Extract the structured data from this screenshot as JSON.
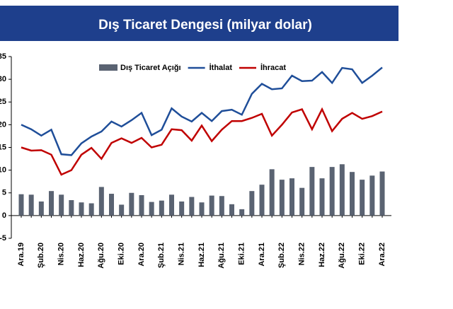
{
  "chart_data": {
    "type": "combo",
    "title": "Dış Ticaret Dengesi (milyar dolar)",
    "categories": [
      "Ara.19",
      null,
      "Şub.20",
      null,
      "Nis.20",
      null,
      "Haz.20",
      null,
      "Ağu.20",
      null,
      "Eki.20",
      null,
      "Ara.20",
      null,
      "Şub.21",
      null,
      "Nis.21",
      null,
      "Haz.21",
      null,
      "Ağu.21",
      null,
      "Eki.21",
      null,
      "Ara.21",
      null,
      "Şub.22",
      null,
      "Nis.22",
      null,
      "Haz.22",
      null,
      "Ağu.22",
      null,
      "Eki.22",
      null,
      "Ara.22"
    ],
    "series": [
      {
        "name": "Dış Ticaret Açığı",
        "type": "bar",
        "color": "#5a6372",
        "values": [
          4.7,
          4.6,
          3.1,
          5.4,
          4.6,
          3.4,
          2.9,
          2.7,
          6.3,
          4.8,
          2.4,
          5.0,
          4.5,
          3.0,
          3.3,
          4.6,
          3.1,
          4.1,
          2.9,
          4.4,
          4.3,
          2.5,
          1.4,
          5.4,
          6.8,
          10.2,
          7.9,
          8.2,
          6.1,
          10.7,
          8.2,
          10.7,
          11.3,
          9.6,
          7.9,
          8.8,
          9.7
        ]
      },
      {
        "name": "İthalat",
        "type": "line",
        "color": "#1f4e99",
        "values": [
          20.0,
          19.0,
          17.6,
          18.9,
          13.5,
          13.3,
          15.9,
          17.4,
          18.5,
          20.7,
          19.6,
          21.0,
          22.6,
          17.7,
          18.9,
          23.6,
          21.8,
          20.7,
          22.6,
          20.8,
          23.0,
          23.3,
          22.2,
          26.8,
          29.0,
          27.8,
          28.0,
          30.8,
          29.6,
          29.7,
          31.6,
          29.2,
          32.5,
          32.2,
          29.2,
          30.8,
          32.6
        ]
      },
      {
        "name": "İhracat",
        "type": "line",
        "color": "#c00000",
        "values": [
          15.0,
          14.3,
          14.4,
          13.4,
          9.0,
          10.0,
          13.4,
          14.9,
          12.5,
          16.0,
          17.0,
          16.0,
          17.1,
          15.0,
          15.6,
          19.0,
          18.8,
          16.5,
          19.8,
          16.4,
          18.9,
          20.8,
          20.8,
          21.5,
          22.4,
          17.6,
          20.0,
          22.7,
          23.4,
          19.0,
          23.4,
          18.6,
          21.3,
          22.6,
          21.3,
          21.9,
          22.9
        ]
      }
    ],
    "ylim": [
      -5,
      35
    ],
    "yticks": [
      -5,
      0,
      5,
      10,
      15,
      20,
      25,
      30,
      35
    ],
    "grid": false,
    "legend": "top"
  }
}
